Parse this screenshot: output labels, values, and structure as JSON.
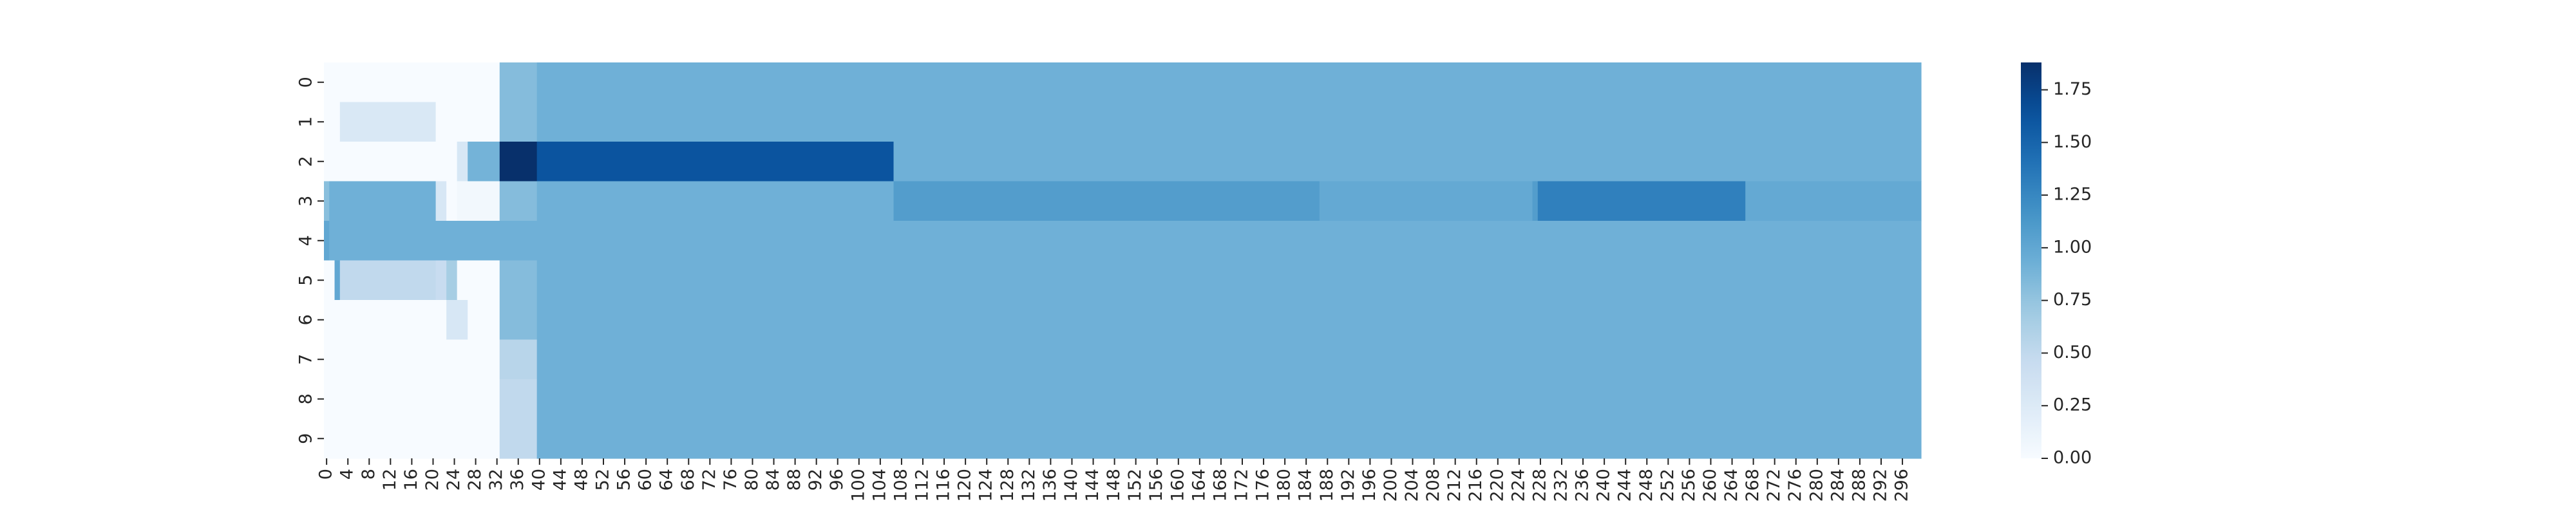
{
  "chart_data": {
    "type": "heatmap",
    "title": "",
    "xlabel": "",
    "ylabel": "",
    "n_cols": 300,
    "rows": [
      "0",
      "1",
      "2",
      "3",
      "4",
      "5",
      "6",
      "7",
      "8",
      "9"
    ],
    "x_tick_labels": [
      "0",
      "4",
      "8",
      "12",
      "16",
      "20",
      "24",
      "28",
      "32",
      "36",
      "40",
      "44",
      "48",
      "52",
      "56",
      "60",
      "64",
      "68",
      "72",
      "76",
      "80",
      "84",
      "88",
      "92",
      "96",
      "100",
      "104",
      "108",
      "112",
      "116",
      "120",
      "124",
      "128",
      "132",
      "136",
      "140",
      "144",
      "148",
      "152",
      "156",
      "160",
      "164",
      "168",
      "172",
      "176",
      "180",
      "184",
      "188",
      "192",
      "196",
      "200",
      "204",
      "208",
      "212",
      "216",
      "220",
      "224",
      "228",
      "232",
      "236",
      "240",
      "244",
      "248",
      "252",
      "256",
      "260",
      "264",
      "268",
      "272",
      "276",
      "280",
      "284",
      "288",
      "292",
      "296"
    ],
    "x_tick_step": 4,
    "colorscale": {
      "name": "Blues",
      "min": 0.0,
      "max": 1.88
    },
    "colorbar_ticks": [
      "0.00",
      "0.25",
      "0.50",
      "0.75",
      "1.00",
      "1.25",
      "1.50",
      "1.75"
    ],
    "colorbar_values": [
      0.0,
      0.25,
      0.5,
      0.75,
      1.0,
      1.25,
      1.5,
      1.75
    ],
    "baseline_value": 0.92,
    "row_segments": [
      [
        [
          0,
          33,
          0.0
        ],
        [
          33,
          40,
          0.82
        ],
        [
          40,
          300,
          0.92
        ]
      ],
      [
        [
          0,
          3,
          0.0
        ],
        [
          3,
          21,
          0.28
        ],
        [
          21,
          33,
          0.0
        ],
        [
          33,
          40,
          0.82
        ],
        [
          40,
          300,
          0.92
        ]
      ],
      [
        [
          0,
          25,
          0.0
        ],
        [
          25,
          27,
          0.3
        ],
        [
          27,
          33,
          0.9
        ],
        [
          33,
          40,
          1.88
        ],
        [
          40,
          107,
          1.62
        ],
        [
          107,
          300,
          0.92
        ]
      ],
      [
        [
          0,
          1,
          0.8
        ],
        [
          1,
          21,
          0.92
        ],
        [
          21,
          23,
          0.3
        ],
        [
          23,
          25,
          0.0
        ],
        [
          25,
          33,
          0.05
        ],
        [
          33,
          40,
          0.82
        ],
        [
          40,
          107,
          0.92
        ],
        [
          107,
          187,
          1.08
        ],
        [
          187,
          227,
          0.98
        ],
        [
          227,
          228,
          1.08
        ],
        [
          228,
          267,
          1.3
        ],
        [
          267,
          300,
          0.98
        ]
      ],
      [
        [
          0,
          1,
          1.0
        ],
        [
          1,
          300,
          0.92
        ]
      ],
      [
        [
          0,
          2,
          0.0
        ],
        [
          2,
          3,
          1.0
        ],
        [
          3,
          21,
          0.5
        ],
        [
          21,
          23,
          0.45
        ],
        [
          23,
          25,
          0.65
        ],
        [
          25,
          33,
          0.0
        ],
        [
          33,
          40,
          0.82
        ],
        [
          40,
          300,
          0.92
        ]
      ],
      [
        [
          0,
          23,
          0.0
        ],
        [
          23,
          27,
          0.3
        ],
        [
          27,
          33,
          0.0
        ],
        [
          33,
          40,
          0.82
        ],
        [
          40,
          300,
          0.92
        ]
      ],
      [
        [
          0,
          33,
          0.0
        ],
        [
          33,
          40,
          0.55
        ],
        [
          40,
          300,
          0.92
        ]
      ],
      [
        [
          0,
          33,
          0.0
        ],
        [
          33,
          40,
          0.5
        ],
        [
          40,
          300,
          0.92
        ]
      ],
      [
        [
          0,
          33,
          0.0
        ],
        [
          33,
          40,
          0.5
        ],
        [
          40,
          300,
          0.92
        ]
      ]
    ]
  }
}
